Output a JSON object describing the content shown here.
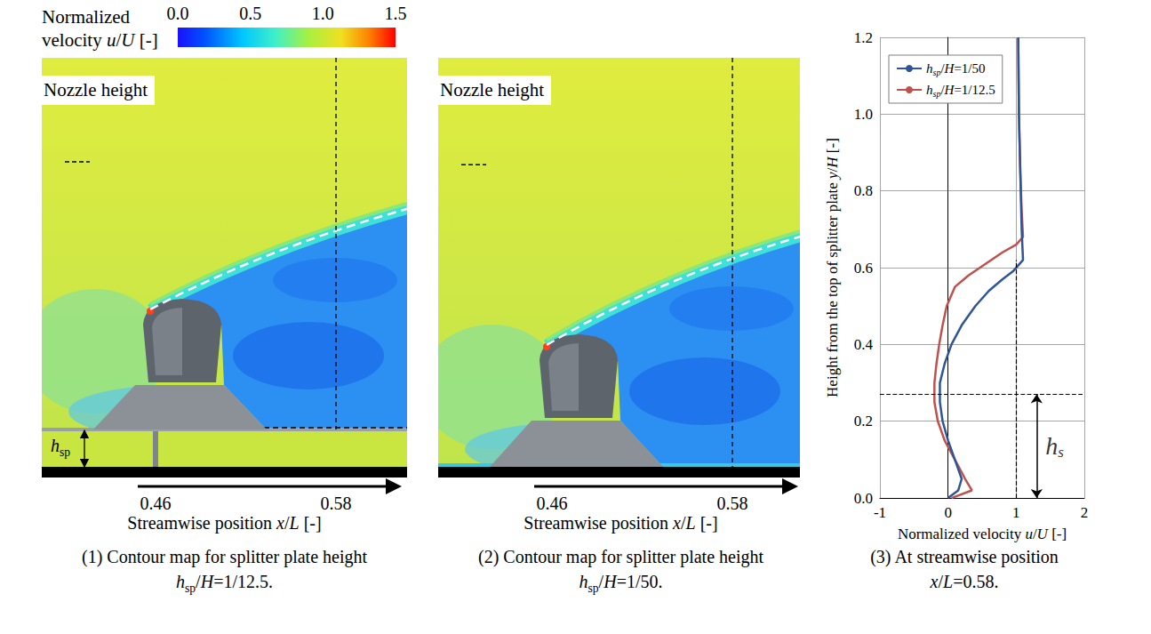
{
  "colorbar": {
    "label": "Normalized velocity u/U [-]",
    "range": [
      0,
      1.5
    ],
    "ticks": [
      {
        "value": 0,
        "label": "0.0"
      },
      {
        "value": 0.5,
        "label": "0.5"
      },
      {
        "value": 1,
        "label": "1.0"
      },
      {
        "value": 1.5,
        "label": "1.5"
      }
    ]
  },
  "panels": [
    {
      "caption": "(1) Contour map for splitter plate height hsp/H=1/12.5.",
      "nozzle_label": "Nozzle height",
      "hsp_label": "hsp",
      "splitter": true,
      "xticks": [
        0.46,
        0.58
      ],
      "xlabel": "Streamwise position x/L [-]"
    },
    {
      "caption": "(2) Contour map for splitter plate height hsp/H=1/50.",
      "nozzle_label": "Nozzle height",
      "splitter": false,
      "xticks": [
        0.46,
        0.58
      ],
      "xlabel": "Streamwise position x/L [-]"
    }
  ],
  "chart_data": {
    "type": "line",
    "caption": "(3) At streamwise position x/L=0.58.",
    "xlabel": "Normalized velocity u/U [-]",
    "ylabel": "Height from the top of splitter plate y/H [-]",
    "xlim": [
      -1,
      2
    ],
    "xticks": [
      -1,
      0,
      1,
      2
    ],
    "ylim": [
      0,
      1.2
    ],
    "yticks": [
      {
        "value": 0,
        "label": "0.0"
      },
      {
        "value": 0.2,
        "label": "0.2"
      },
      {
        "value": 0.4,
        "label": "0.4"
      },
      {
        "value": 0.6,
        "label": "0.6"
      },
      {
        "value": 0.8,
        "label": "0.8"
      },
      {
        "value": 1.0,
        "label": "1.0"
      },
      {
        "value": 1.2,
        "label": "1.2"
      }
    ],
    "grid": true,
    "legend": "upper left",
    "series": [
      {
        "name": "hsp/H=1/50",
        "color": "#2f5597",
        "x": [
          0.0,
          0.15,
          0.2,
          0.1,
          0.0,
          -0.08,
          -0.12,
          -0.12,
          -0.05,
          0.05,
          0.2,
          0.4,
          0.6,
          0.8,
          0.95,
          1.1,
          1.08,
          1.06,
          1.04,
          1.03
        ],
        "values": [
          0.0,
          0.02,
          0.05,
          0.1,
          0.15,
          0.2,
          0.25,
          0.3,
          0.35,
          0.4,
          0.45,
          0.5,
          0.54,
          0.57,
          0.59,
          0.62,
          0.7,
          0.85,
          1.0,
          1.2
        ]
      },
      {
        "name": "hsp/H=1/12.5",
        "color": "#c0504d",
        "x": [
          0.05,
          0.35,
          0.25,
          0.1,
          -0.05,
          -0.15,
          -0.2,
          -0.2,
          -0.17,
          -0.13,
          -0.08,
          -0.02,
          0.1,
          0.3,
          0.55,
          0.8,
          1.0,
          1.1,
          1.08,
          1.06,
          1.04,
          1.03
        ],
        "values": [
          0.0,
          0.02,
          0.05,
          0.1,
          0.15,
          0.2,
          0.25,
          0.3,
          0.35,
          0.4,
          0.45,
          0.5,
          0.55,
          0.58,
          0.61,
          0.64,
          0.66,
          0.68,
          0.75,
          0.85,
          1.0,
          1.2
        ]
      }
    ],
    "reference_lines": [
      {
        "x": 1,
        "y": [
          0,
          0.62
        ]
      },
      {
        "y": 0.27
      }
    ],
    "annotations": [
      {
        "text": "hs",
        "x": 1.3,
        "y": [
          0,
          0.27
        ]
      }
    ]
  }
}
